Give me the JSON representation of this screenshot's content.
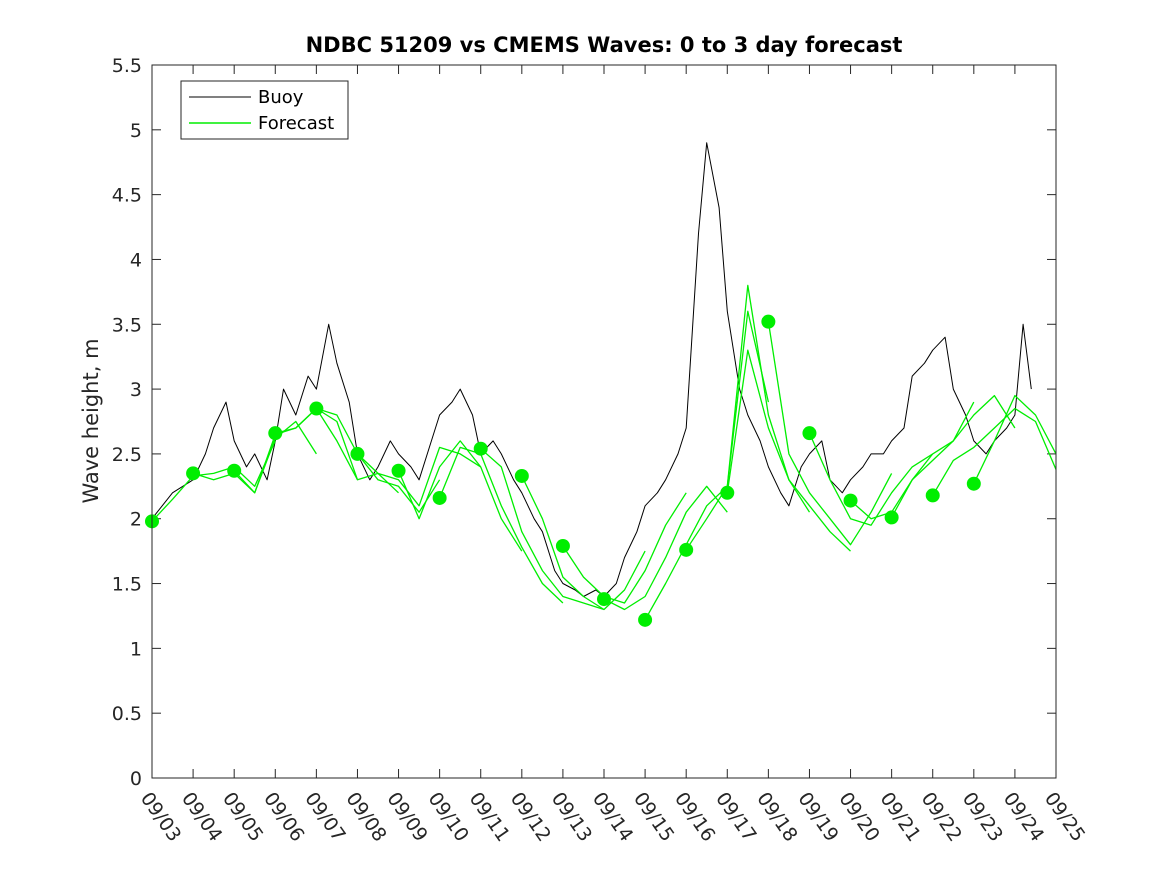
{
  "chart_data": {
    "type": "line",
    "title": "NDBC 51209 vs CMEMS Waves: 0 to 3 day forecast",
    "xlabel": "",
    "ylabel": "Wave height, m",
    "xlim": [
      0,
      22
    ],
    "ylim": [
      0,
      5.5
    ],
    "xticks": [
      "09/03",
      "09/04",
      "09/05",
      "09/06",
      "09/07",
      "09/08",
      "09/09",
      "09/10",
      "09/11",
      "09/12",
      "09/13",
      "09/14",
      "09/15",
      "09/16",
      "09/17",
      "09/18",
      "09/19",
      "09/20",
      "09/21",
      "09/22",
      "09/23",
      "09/24",
      "09/25"
    ],
    "yticks": [
      0,
      0.5,
      1,
      1.5,
      2,
      2.5,
      3,
      3.5,
      4,
      4.5,
      5,
      5.5
    ],
    "ytick_labels": [
      "0",
      "0.5",
      "1",
      "1.5",
      "2",
      "2.5",
      "3",
      "3.5",
      "4",
      "4.5",
      "5",
      "5.5"
    ],
    "legend": {
      "position": "top-left",
      "entries": [
        "Buoy",
        "Forecast"
      ]
    },
    "colors": {
      "buoy": "#000000",
      "forecast": "#00ee00",
      "axis": "#262626"
    },
    "buoy_series": {
      "name": "Buoy",
      "x": [
        0,
        0.5,
        1,
        1.3,
        1.5,
        1.8,
        2,
        2.3,
        2.5,
        2.8,
        3,
        3.2,
        3.5,
        3.8,
        4,
        4.3,
        4.5,
        4.8,
        5,
        5.3,
        5.5,
        5.8,
        6,
        6.3,
        6.5,
        6.8,
        7,
        7.3,
        7.5,
        7.8,
        8,
        8.3,
        8.5,
        8.8,
        9,
        9.3,
        9.5,
        9.8,
        10,
        10.3,
        10.5,
        10.8,
        11,
        11.3,
        11.5,
        11.8,
        12,
        12.3,
        12.5,
        12.8,
        13,
        13.3,
        13.5,
        13.8,
        14,
        14.3,
        14.5,
        14.8,
        15,
        15.3,
        15.5,
        15.8,
        16,
        16.3,
        16.5,
        16.8,
        17,
        17.3,
        17.5,
        17.8,
        18,
        18.3,
        18.5,
        18.8,
        19,
        19.3,
        19.5,
        19.8,
        20,
        20.3,
        20.5,
        20.8,
        21,
        21.2,
        21.4
      ],
      "y": [
        2.0,
        2.2,
        2.3,
        2.5,
        2.7,
        2.9,
        2.6,
        2.4,
        2.5,
        2.3,
        2.6,
        3.0,
        2.8,
        3.1,
        3.0,
        3.5,
        3.2,
        2.9,
        2.5,
        2.3,
        2.4,
        2.6,
        2.5,
        2.4,
        2.3,
        2.6,
        2.8,
        2.9,
        3.0,
        2.8,
        2.5,
        2.6,
        2.5,
        2.3,
        2.2,
        2.0,
        1.9,
        1.6,
        1.5,
        1.45,
        1.4,
        1.45,
        1.4,
        1.5,
        1.7,
        1.9,
        2.1,
        2.2,
        2.3,
        2.5,
        2.7,
        4.2,
        4.9,
        4.4,
        3.6,
        3.0,
        2.8,
        2.6,
        2.4,
        2.2,
        2.1,
        2.4,
        2.5,
        2.6,
        2.3,
        2.2,
        2.3,
        2.4,
        2.5,
        2.5,
        2.6,
        2.7,
        3.1,
        3.2,
        3.3,
        3.4,
        3.0,
        2.8,
        2.6,
        2.5,
        2.6,
        2.7,
        2.8,
        3.5,
        3.0
      ]
    },
    "forecast_runs": [
      {
        "x": [
          0,
          0.5,
          1,
          1.5,
          2,
          2.5,
          3
        ],
        "y": [
          1.98,
          2.15,
          2.33,
          2.35,
          2.4,
          2.25,
          2.6
        ]
      },
      {
        "x": [
          1,
          1.5,
          2,
          2.5,
          3,
          3.5,
          4
        ],
        "y": [
          2.35,
          2.3,
          2.35,
          2.2,
          2.62,
          2.75,
          2.5
        ]
      },
      {
        "x": [
          2,
          2.5,
          3,
          3.5,
          4,
          4.5,
          5
        ],
        "y": [
          2.37,
          2.2,
          2.65,
          2.7,
          2.85,
          2.6,
          2.3
        ]
      },
      {
        "x": [
          3,
          3.5,
          4,
          4.5,
          5,
          5.5,
          6
        ],
        "y": [
          2.66,
          2.7,
          2.85,
          2.75,
          2.3,
          2.35,
          2.2
        ]
      },
      {
        "x": [
          4,
          4.5,
          5,
          5.5,
          6,
          6.5,
          7
        ],
        "y": [
          2.85,
          2.8,
          2.5,
          2.3,
          2.25,
          2.05,
          2.3
        ]
      },
      {
        "x": [
          5,
          5.5,
          6,
          6.5,
          7,
          7.5,
          8
        ],
        "y": [
          2.5,
          2.35,
          2.3,
          2.1,
          2.55,
          2.5,
          2.4
        ]
      },
      {
        "x": [
          6,
          6.5,
          7,
          7.5,
          8,
          8.5,
          9
        ],
        "y": [
          2.37,
          2.0,
          2.4,
          2.6,
          2.4,
          2.0,
          1.75
        ]
      },
      {
        "x": [
          7,
          7.5,
          8,
          8.5,
          9,
          9.5,
          10
        ],
        "y": [
          2.16,
          2.55,
          2.5,
          2.1,
          1.78,
          1.5,
          1.35
        ]
      },
      {
        "x": [
          8,
          8.5,
          9,
          9.5,
          10,
          10.5,
          11
        ],
        "y": [
          2.54,
          2.4,
          1.9,
          1.6,
          1.4,
          1.35,
          1.3
        ]
      },
      {
        "x": [
          9,
          9.5,
          10,
          10.5,
          11,
          11.5,
          12
        ],
        "y": [
          2.33,
          2.0,
          1.55,
          1.4,
          1.3,
          1.45,
          1.75
        ]
      },
      {
        "x": [
          10,
          10.5,
          11,
          11.5,
          12,
          12.5,
          13
        ],
        "y": [
          1.79,
          1.55,
          1.4,
          1.35,
          1.6,
          1.95,
          2.2
        ]
      },
      {
        "x": [
          11,
          11.5,
          12,
          12.5,
          13,
          13.5,
          14
        ],
        "y": [
          1.38,
          1.3,
          1.4,
          1.7,
          2.05,
          2.25,
          2.05
        ]
      },
      {
        "x": [
          12,
          12.5,
          13,
          13.5,
          14,
          14.5,
          15
        ],
        "y": [
          1.22,
          1.5,
          1.8,
          2.1,
          2.25,
          3.6,
          2.9
        ]
      },
      {
        "x": [
          13,
          13.5,
          14,
          14.5,
          15,
          15.5,
          16
        ],
        "y": [
          1.76,
          2.0,
          2.25,
          3.8,
          2.8,
          2.3,
          2.05
        ]
      },
      {
        "x": [
          14,
          14.5,
          15,
          15.5,
          16,
          16.5,
          17
        ],
        "y": [
          2.2,
          3.3,
          2.7,
          2.3,
          2.1,
          1.9,
          1.75
        ]
      },
      {
        "x": [
          15,
          15.5,
          16,
          16.5,
          17,
          17.5,
          18
        ],
        "y": [
          3.52,
          2.5,
          2.2,
          2.0,
          1.8,
          2.05,
          2.35
        ]
      },
      {
        "x": [
          16,
          16.5,
          17,
          17.5,
          18,
          18.5,
          19
        ],
        "y": [
          2.66,
          2.3,
          2.0,
          1.95,
          2.2,
          2.4,
          2.5
        ]
      },
      {
        "x": [
          17,
          17.5,
          18,
          18.5,
          19,
          19.5,
          20
        ],
        "y": [
          2.14,
          2.0,
          2.05,
          2.3,
          2.45,
          2.6,
          2.9
        ]
      },
      {
        "x": [
          18,
          18.5,
          19,
          19.5,
          20,
          20.5,
          21
        ],
        "y": [
          2.01,
          2.3,
          2.5,
          2.6,
          2.8,
          2.95,
          2.7
        ]
      },
      {
        "x": [
          19,
          19.5,
          20,
          20.5,
          21,
          21.5,
          22
        ],
        "y": [
          2.18,
          2.45,
          2.55,
          2.7,
          2.85,
          2.75,
          2.38
        ]
      },
      {
        "x": [
          20,
          20.5,
          21,
          21.5,
          22
        ],
        "y": [
          2.27,
          2.6,
          2.95,
          2.8,
          2.5
        ]
      }
    ],
    "forecast_initial_points": {
      "x": [
        0,
        1,
        2,
        3,
        4,
        5,
        6,
        7,
        8,
        9,
        10,
        11,
        12,
        13,
        14,
        15,
        16,
        17,
        18,
        19,
        20
      ],
      "y": [
        1.98,
        2.35,
        2.37,
        2.66,
        2.85,
        2.5,
        2.37,
        2.16,
        2.54,
        2.33,
        1.79,
        1.38,
        1.22,
        1.76,
        2.2,
        3.52,
        2.66,
        2.14,
        2.01,
        2.18,
        2.27
      ]
    }
  }
}
